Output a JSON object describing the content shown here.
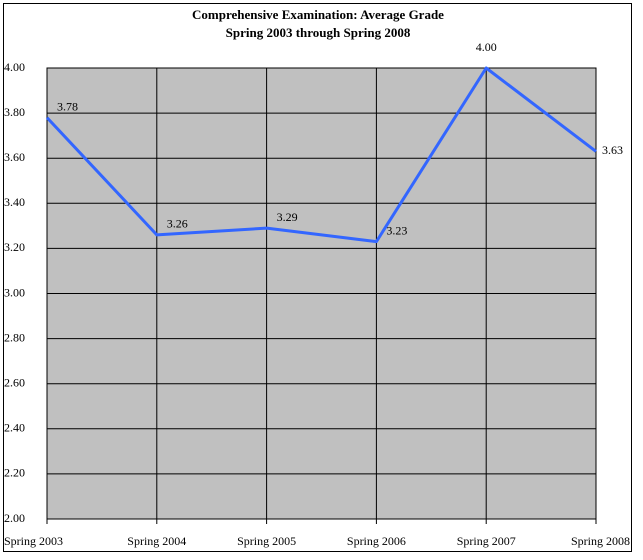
{
  "chart_data": {
    "type": "line",
    "title": "Comprehensive Examination: Average Grade",
    "subtitle": "Spring 2003 through Spring 2008",
    "categories": [
      "Spring 2003",
      "Spring 2004",
      "Spring 2005",
      "Spring 2006",
      "Spring 2007",
      "Spring 2008"
    ],
    "series": [
      {
        "name": "Average Grade",
        "color": "#3366ff",
        "values": [
          3.78,
          3.26,
          3.29,
          3.23,
          4.0,
          3.63
        ],
        "value_labels": [
          "3.78",
          "3.26",
          "3.29",
          "3.23",
          "4.00",
          "3.63"
        ]
      }
    ],
    "ylim": [
      2,
      4
    ],
    "yticks": [
      {
        "value": 2,
        "label": "2.00"
      },
      {
        "value": 2.2,
        "label": "2.20"
      },
      {
        "value": 2.4,
        "label": "2.40"
      },
      {
        "value": 2.6,
        "label": "2.60"
      },
      {
        "value": 2.8,
        "label": "2.80"
      },
      {
        "value": 3,
        "label": "3.00"
      },
      {
        "value": 3.2,
        "label": "3.20"
      },
      {
        "value": 3.4,
        "label": "3.40"
      },
      {
        "value": 3.6,
        "label": "3.60"
      },
      {
        "value": 3.8,
        "label": "3.80"
      },
      {
        "value": 4,
        "label": "4.00"
      }
    ],
    "grid": true,
    "plot_background": "#c0c0c0"
  }
}
